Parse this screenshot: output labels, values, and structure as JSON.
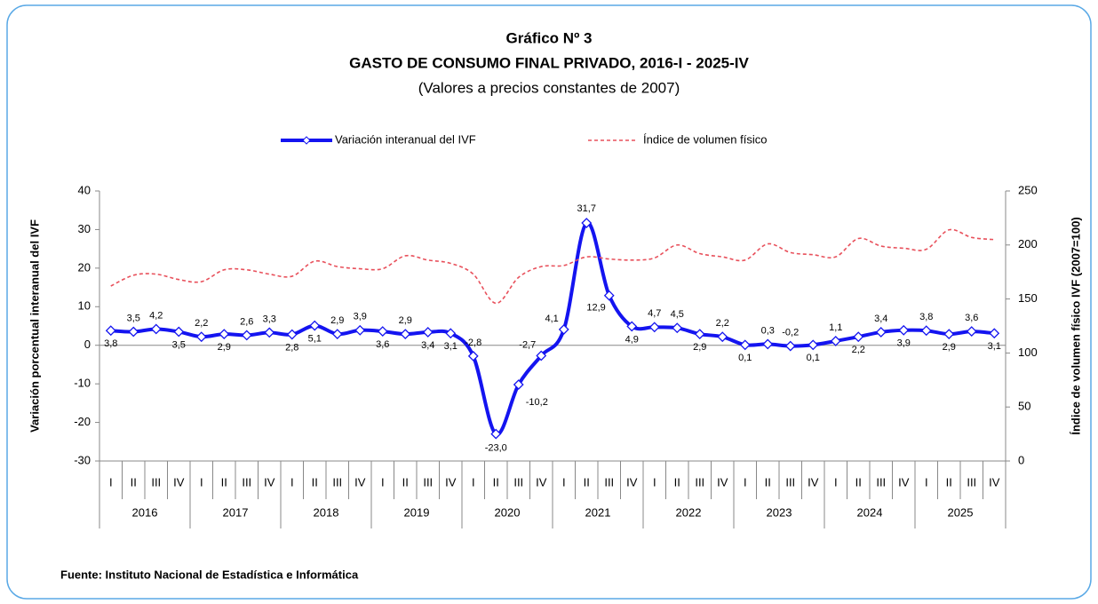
{
  "chart_data": {
    "type": "line",
    "title": "Gráfico Nº 3",
    "subtitle": "GASTO DE CONSUMO FINAL PRIVADO, 2016-I - 2025-IV",
    "note": "(Valores a precios constantes de 2007)",
    "source": "Fuente: Instituto Nacional de Estadística e Informática",
    "ylabel": "Variación porcentual interanual del IVF",
    "y2label": "Índice de volumen físico IVF (2007=100)",
    "categories": [
      "I",
      "II",
      "III",
      "IV",
      "I",
      "II",
      "III",
      "IV",
      "I",
      "II",
      "III",
      "IV",
      "I",
      "II",
      "III",
      "IV",
      "I",
      "II",
      "III",
      "IV",
      "I",
      "II",
      "III",
      "IV",
      "I",
      "II",
      "III",
      "IV",
      "I",
      "II",
      "III",
      "IV",
      "I",
      "II",
      "III",
      "IV",
      "I",
      "II",
      "III",
      "IV"
    ],
    "groups": [
      "2016",
      "2017",
      "2018",
      "2019",
      "2020",
      "2021",
      "2022",
      "2023",
      "2024",
      "2025"
    ],
    "ylim": [
      -30,
      40
    ],
    "yticks": [
      -30,
      -20,
      -10,
      0,
      10,
      20,
      30,
      40
    ],
    "y2lim": [
      0,
      250
    ],
    "y2ticks": [
      0,
      50,
      100,
      150,
      200,
      250
    ],
    "series": [
      {
        "name": "Variación interanual del IVF",
        "color": "#1414f0",
        "values": [
          3.8,
          3.5,
          4.2,
          3.5,
          2.2,
          2.9,
          2.6,
          3.3,
          2.8,
          5.1,
          2.9,
          3.9,
          3.6,
          2.9,
          3.4,
          3.1,
          -2.8,
          -23.0,
          -10.2,
          -2.7,
          4.1,
          31.7,
          12.9,
          4.9,
          4.7,
          4.5,
          2.9,
          2.2,
          0.1,
          0.3,
          -0.2,
          0.1,
          1.1,
          2.2,
          3.4,
          3.9,
          3.8,
          2.9,
          3.6,
          3.1
        ],
        "value_labels": [
          "3,8",
          "3,5",
          "4,2",
          "3,5",
          "2,2",
          "2,9",
          "2,6",
          "3,3",
          "2,8",
          "5,1",
          "2,9",
          "3,9",
          "3,6",
          "2,9",
          "3,4",
          "3,1",
          "-2,8",
          "-23,0",
          "-10,2",
          "-2,7",
          "4,1",
          "31,7",
          "12,9",
          "4,9",
          "4,7",
          "4,5",
          "2,9",
          "2,2",
          "0,1",
          "0,3",
          "-0,2",
          "0,1",
          "1,1",
          "2,2",
          "3,4",
          "3,9",
          "3,8",
          "2,9",
          "3,6",
          "3,1"
        ]
      },
      {
        "name": "Índice de volumen físico",
        "color": "#e8505b",
        "axis": "y2",
        "values": [
          162,
          172,
          173,
          168,
          166,
          177,
          177,
          173,
          171,
          185,
          180,
          178,
          178,
          190,
          186,
          183,
          173,
          146,
          170,
          180,
          181,
          189,
          187,
          186,
          188,
          200,
          192,
          189,
          186,
          201,
          193,
          191,
          189,
          206,
          199,
          197,
          196,
          214,
          207,
          205
        ]
      }
    ]
  }
}
